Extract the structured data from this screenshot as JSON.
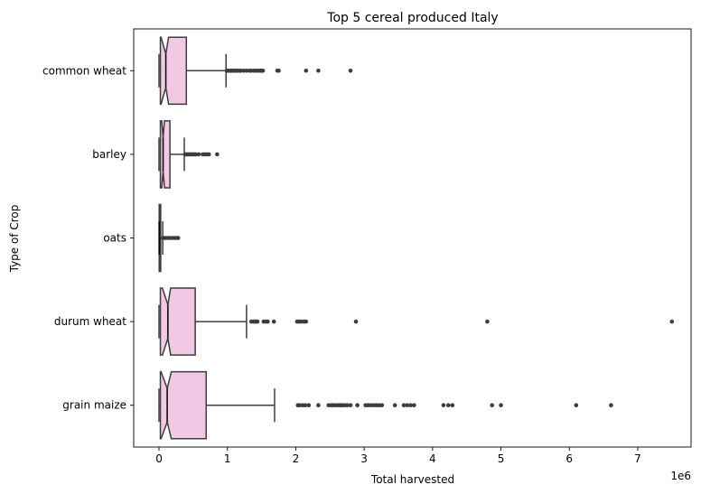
{
  "chart_data": {
    "type": "boxplot",
    "orientation": "horizontal",
    "notched": true,
    "title": "Top 5 cereal produced Italy",
    "xlabel": "Total harvested",
    "ylabel": "Type of Crop",
    "x_offset_label": "1e6",
    "xlim": [
      -0.37,
      7.78
    ],
    "x_ticks": [
      0,
      1,
      2,
      3,
      4,
      5,
      6,
      7
    ],
    "x_tick_labels": [
      "0",
      "1",
      "2",
      "3",
      "4",
      "5",
      "6",
      "7"
    ],
    "categories": [
      "common wheat",
      "barley",
      "oats",
      "durum wheat",
      "grain maize"
    ],
    "box_color": "#f2c9e5",
    "edge_color": "#3d3d3d",
    "grid": false,
    "boxes": [
      {
        "category": "common wheat",
        "whislo": 0.0,
        "q1": 0.02,
        "med": 0.1,
        "q3": 0.4,
        "whishi": 0.98,
        "notch_lo": 0.03,
        "notch_hi": 0.14,
        "fliers": [
          0.99,
          1.01,
          1.03,
          1.05,
          1.07,
          1.09,
          1.11,
          1.13,
          1.15,
          1.18,
          1.2,
          1.24,
          1.28,
          1.32,
          1.35,
          1.39,
          1.42,
          1.45,
          1.48,
          1.5,
          1.52,
          1.73,
          1.75,
          2.15,
          2.33,
          2.8
        ]
      },
      {
        "category": "barley",
        "whislo": 0.0,
        "q1": 0.02,
        "med": 0.06,
        "q3": 0.16,
        "whishi": 0.37,
        "notch_lo": 0.04,
        "notch_hi": 0.08,
        "fliers": [
          0.38,
          0.4,
          0.42,
          0.44,
          0.46,
          0.48,
          0.5,
          0.52,
          0.54,
          0.58,
          0.64,
          0.67,
          0.7,
          0.73,
          0.85
        ]
      },
      {
        "category": "oats",
        "whislo": 0.0,
        "q1": 0.003,
        "med": 0.007,
        "q3": 0.025,
        "whishi": 0.055,
        "notch_lo": 0.004,
        "notch_hi": 0.01,
        "fliers": [
          0.06,
          0.08,
          0.1,
          0.13,
          0.16,
          0.2,
          0.23,
          0.26,
          0.28
        ]
      },
      {
        "category": "durum wheat",
        "whislo": 0.0,
        "q1": 0.02,
        "med": 0.13,
        "q3": 0.53,
        "whishi": 1.28,
        "notch_lo": 0.05,
        "notch_hi": 0.17,
        "fliers": [
          1.35,
          1.38,
          1.4,
          1.42,
          1.44,
          1.53,
          1.56,
          1.59,
          1.68,
          2.02,
          2.05,
          2.08,
          2.12,
          2.15,
          2.88,
          4.8,
          7.5
        ]
      },
      {
        "category": "grain maize",
        "whislo": 0.0,
        "q1": 0.02,
        "med": 0.12,
        "q3": 0.69,
        "whishi": 1.69,
        "notch_lo": 0.03,
        "notch_hi": 0.18,
        "fliers": [
          2.03,
          2.06,
          2.1,
          2.14,
          2.19,
          2.33,
          2.48,
          2.52,
          2.55,
          2.58,
          2.62,
          2.65,
          2.68,
          2.71,
          2.75,
          2.8,
          2.9,
          3.02,
          3.06,
          3.1,
          3.14,
          3.18,
          3.22,
          3.26,
          3.45,
          3.58,
          3.63,
          3.68,
          3.73,
          4.16,
          4.23,
          4.29,
          4.87,
          5.0,
          6.1,
          6.61
        ]
      }
    ]
  }
}
